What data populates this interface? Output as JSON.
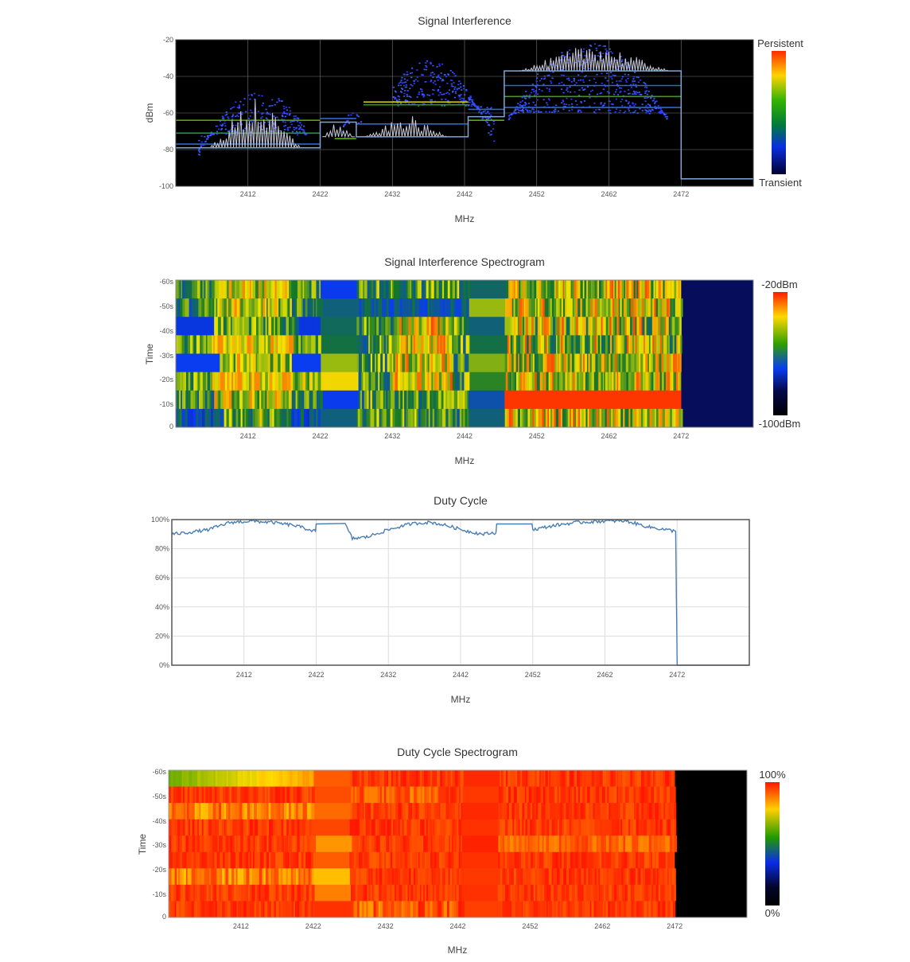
{
  "charts": [
    {
      "chart_data": {
        "type": "line",
        "title": "Signal Interference",
        "xlabel": "MHz",
        "ylabel": "dBm",
        "xlim": [
          2402,
          2482
        ],
        "ylim": [
          -100,
          -20
        ],
        "x_ticks": [
          "2412",
          "2422",
          "2432",
          "2442",
          "2452",
          "2462",
          "2472"
        ],
        "y_ticks": [
          "-20",
          "-40",
          "-60",
          "-80",
          "-100"
        ],
        "grid": true,
        "background": "#000000",
        "colorbar": {
          "top": "Persistent",
          "bottom": "Transient"
        },
        "series": [
          {
            "x": [
              2402,
              2422,
              2422,
              2427,
              2427,
              2442.5,
              2442.5,
              2447.5,
              2447.5,
              2472,
              2472,
              2482
            ],
            "y": [
              -79,
              -79,
              -65,
              -65,
              -73,
              -73,
              -62,
              -62,
              -37,
              -37,
              -96,
              -96
            ],
            "color": "#7fa6d6"
          }
        ]
      }
    },
    {
      "chart_data": {
        "type": "heatmap",
        "title": "Signal Interference Spectrogram",
        "xlabel": "MHz",
        "ylabel": "Time",
        "xlim": [
          2402,
          2482
        ],
        "x_ticks": [
          "2412",
          "2422",
          "2432",
          "2442",
          "2452",
          "2462",
          "2472"
        ],
        "y_ticks": [
          "-60s",
          "-50s",
          "-40s",
          "-30s",
          "-20s",
          "-10s",
          "0"
        ],
        "colorbar": {
          "top": "-20dBm",
          "bottom": "-100dBm"
        }
      }
    },
    {
      "chart_data": {
        "type": "line",
        "title": "Duty Cycle",
        "xlabel": "MHz",
        "ylabel": "",
        "xlim": [
          2402,
          2482
        ],
        "ylim": [
          0,
          100
        ],
        "x_ticks": [
          "2412",
          "2422",
          "2432",
          "2442",
          "2452",
          "2462",
          "2472"
        ],
        "y_ticks": [
          "100%",
          "80%",
          "60%",
          "40%",
          "20%",
          "0%"
        ],
        "grid": true,
        "series": [
          {
            "x": [
              2402,
              2404,
              2407,
              2410,
              2413,
              2416,
              2419,
              2421.9,
              2422,
              2426,
              2427,
              2429,
              2432,
              2435,
              2437,
              2438,
              2440,
              2443,
              2445,
              2446.9,
              2447,
              2451.9,
              2452,
              2455,
              2458,
              2462,
              2465,
              2468,
              2471.8,
              2472,
              2482
            ],
            "y": [
              90,
              91,
              93,
              98,
              99,
              98,
              96,
              92,
              97,
              97,
              87,
              88,
              93,
              97,
              98,
              98,
              96,
              92,
              90,
              91,
              97,
              97,
              93,
              96,
              98,
              99,
              99,
              95,
              92,
              0,
              0
            ],
            "color": "#4a7fb5"
          }
        ]
      }
    },
    {
      "chart_data": {
        "type": "heatmap",
        "title": "Duty Cycle Spectrogram",
        "xlabel": "MHz",
        "ylabel": "Time",
        "xlim": [
          2402,
          2482
        ],
        "x_ticks": [
          "2412",
          "2422",
          "2432",
          "2442",
          "2452",
          "2462",
          "2472"
        ],
        "y_ticks": [
          "-60s",
          "-50s",
          "-40s",
          "-30s",
          "-20s",
          "-10s",
          "0"
        ],
        "colorbar": {
          "top": "100%",
          "bottom": "0%"
        }
      }
    }
  ]
}
